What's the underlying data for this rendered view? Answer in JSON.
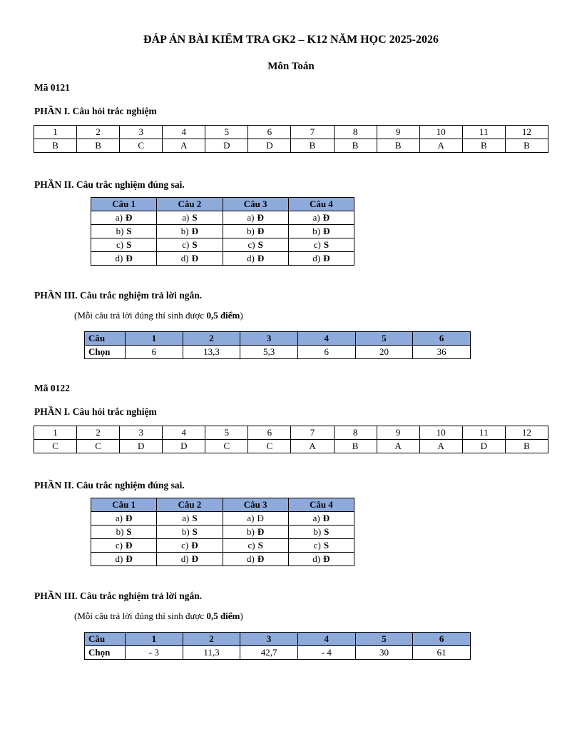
{
  "page": {
    "title": "ĐÁP ÁN BÀI KIỂM TRA GK2 – K12 NĂM HỌC 2025-2026",
    "subtitle": "Môn Toán"
  },
  "colors": {
    "table_header_bg": "#8EAADB",
    "table_border": "#000000",
    "text": "#000000",
    "page_bg": "#FFFFFF"
  },
  "sections": [
    {
      "code": "Mã 0121",
      "part1": {
        "heading": "PHẦN I. Câu hỏi trắc nghiệm",
        "numbers": [
          "1",
          "2",
          "3",
          "4",
          "5",
          "6",
          "7",
          "8",
          "9",
          "10",
          "11",
          "12"
        ],
        "answers": [
          "B",
          "B",
          "C",
          "A",
          "D",
          "D",
          "B",
          "B",
          "B",
          "A",
          "B",
          "B"
        ]
      },
      "part2": {
        "heading": "PHẦN II. Câu trắc nghiệm đúng sai.",
        "headers": [
          "Câu 1",
          "Câu 2",
          "Câu 3",
          "Câu 4"
        ],
        "rows": [
          [
            {
              "p": "a)",
              "v": "Đ",
              "b": true
            },
            {
              "p": "a)",
              "v": "S",
              "b": true
            },
            {
              "p": "a)",
              "v": "Đ",
              "b": true
            },
            {
              "p": "a)",
              "v": "Đ",
              "b": true
            }
          ],
          [
            {
              "p": "b)",
              "v": "S",
              "b": true
            },
            {
              "p": "b)",
              "v": "Đ",
              "b": true
            },
            {
              "p": "b)",
              "v": "Đ",
              "b": true
            },
            {
              "p": "b)",
              "v": "Đ",
              "b": true
            }
          ],
          [
            {
              "p": "c)",
              "v": "S",
              "b": true
            },
            {
              "p": "c)",
              "v": "S",
              "b": true
            },
            {
              "p": "c)",
              "v": "S",
              "b": true
            },
            {
              "p": "c)",
              "v": "S",
              "b": true
            }
          ],
          [
            {
              "p": "d)",
              "v": "Đ",
              "b": true
            },
            {
              "p": "d)",
              "v": "Đ",
              "b": true
            },
            {
              "p": "d)",
              "v": "Đ",
              "b": true
            },
            {
              "p": "d)",
              "v": "Đ",
              "b": true
            }
          ]
        ]
      },
      "part3": {
        "heading": "PHẦN III. Câu trắc nghiệm trả lời ngắn.",
        "note": {
          "pre": "(Mỗi câu trả lời đúng thí sinh được ",
          "bold": "0,5 điểm",
          "suf": ")"
        },
        "corner_label": "Câu",
        "row_label": "Chọn",
        "numbers": [
          "1",
          "2",
          "3",
          "4",
          "5",
          "6"
        ],
        "values": [
          "6",
          "13,3",
          "5,3",
          "6",
          "20",
          "36"
        ]
      }
    },
    {
      "code": "Mã 0122",
      "part1": {
        "heading": "PHẦN I. Câu hỏi trắc nghiệm",
        "numbers": [
          "1",
          "2",
          "3",
          "4",
          "5",
          "6",
          "7",
          "8",
          "9",
          "10",
          "11",
          "12"
        ],
        "answers": [
          "C",
          "C",
          "D",
          "D",
          "C",
          "C",
          "A",
          "B",
          "A",
          "A",
          "D",
          "B"
        ]
      },
      "part2": {
        "heading": "PHẦN II. Câu trắc nghiệm đúng sai.",
        "headers": [
          "Câu 1",
          "Câu 2",
          "Câu 3",
          "Câu 4"
        ],
        "rows": [
          [
            {
              "p": "a)",
              "v": "Đ",
              "b": true
            },
            {
              "p": "a)",
              "v": "S",
              "b": true
            },
            {
              "p": "a)",
              "v": "Đ",
              "b": false
            },
            {
              "p": "a)",
              "v": "Đ",
              "b": true
            }
          ],
          [
            {
              "p": "b)",
              "v": "S",
              "b": true
            },
            {
              "p": "b)",
              "v": "S",
              "b": true
            },
            {
              "p": "b)",
              "v": "Đ",
              "b": true
            },
            {
              "p": "b)",
              "v": "S",
              "b": true
            }
          ],
          [
            {
              "p": "c)",
              "v": "Đ",
              "b": true
            },
            {
              "p": "c)",
              "v": "Đ",
              "b": true
            },
            {
              "p": "c)",
              "v": "S",
              "b": true
            },
            {
              "p": "c)",
              "v": "S",
              "b": true
            }
          ],
          [
            {
              "p": "d)",
              "v": "Đ",
              "b": true
            },
            {
              "p": "d)",
              "v": "Đ",
              "b": true
            },
            {
              "p": "d)",
              "v": "Đ",
              "b": true
            },
            {
              "p": "d)",
              "v": "Đ",
              "b": true
            }
          ]
        ]
      },
      "part3": {
        "heading": "PHẦN III. Câu trắc nghiệm trả lời ngắn.",
        "note": {
          "pre": "(Mỗi câu trả lời đúng thí sinh được ",
          "bold": "0,5 điểm",
          "suf": ")"
        },
        "corner_label": "Câu",
        "row_label": "Chọn",
        "numbers": [
          "1",
          "2",
          "3",
          "4",
          "5",
          "6"
        ],
        "values": [
          "- 3",
          "11,3",
          "42,7",
          "- 4",
          "30",
          "61"
        ]
      }
    }
  ]
}
